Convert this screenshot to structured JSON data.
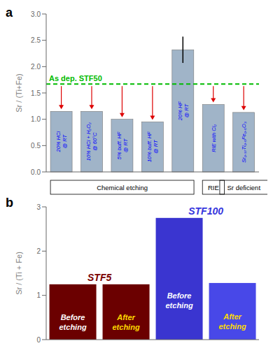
{
  "chart_data": [
    {
      "type": "bar",
      "title": "a",
      "ylabel": "Sr / (Ti+Fe)",
      "categories": [
        "20% HCl\n@ RT",
        "10% HCl + H₂O₂\n@ 60°C",
        "5% buff. HF\n@ RT",
        "10% buff. HF\n@ RT",
        "20% HF\n@ RT",
        "RIE with Cl₂",
        "Sr₀.₉₇Ti₀.₅Fe₀.₅O₃"
      ],
      "values": [
        1.15,
        1.15,
        1.0,
        0.95,
        2.32,
        1.28,
        1.13
      ],
      "errors": [
        null,
        null,
        null,
        null,
        0.25,
        null,
        null
      ],
      "color": "#a0b4c8",
      "category_groups": [
        "Chemical etching",
        "Chemical etching",
        "Chemical etching",
        "Chemical etching",
        "Chemical etching",
        "RIE",
        "Sr deficient"
      ],
      "groups": [
        {
          "label": "Chemical etching"
        },
        {
          "label": "RIE"
        },
        {
          "label": "Sr deficient"
        }
      ],
      "reference_line": {
        "y": 1.67,
        "label": "As dep. STF50",
        "color": "#00bb00",
        "line_style": "dashed"
      },
      "arrows": {
        "color": "#dd0000",
        "shown": [
          true,
          true,
          true,
          true,
          false,
          true,
          true
        ]
      },
      "ylim": [
        0,
        3.0
      ],
      "yticks": [
        {
          "value": 0.0,
          "label": "0.0"
        },
        0.5,
        {
          "value": 1.0,
          "label": "1.0"
        },
        1.5,
        {
          "value": 2.0,
          "label": "2.0"
        },
        2.5,
        {
          "value": 3.0,
          "label": "3.0"
        }
      ],
      "grid": false
    },
    {
      "type": "bar",
      "title": "b",
      "ylabel": "Sr / (Ti + Fe)",
      "categories": [
        "Before\netching",
        "After\netching",
        "Before\netching",
        "After\netching"
      ],
      "values": [
        1.25,
        1.25,
        2.75,
        1.28
      ],
      "colors": [
        "#6b0000",
        "#6b0000",
        "#3a35d0",
        "#4848e8"
      ],
      "label_colors": [
        "white",
        "#ffdd00",
        "white",
        "#ffdd00"
      ],
      "category_groups": [
        "STF5",
        "STF5",
        "STF100",
        "STF100"
      ],
      "groups": [
        {
          "label": "STF5",
          "color": "#7b0000"
        },
        {
          "label": "STF100",
          "color": "#3535dd"
        }
      ],
      "ylim": [
        0,
        3
      ],
      "yticks": [
        0,
        1,
        2,
        3
      ],
      "grid": false
    }
  ]
}
